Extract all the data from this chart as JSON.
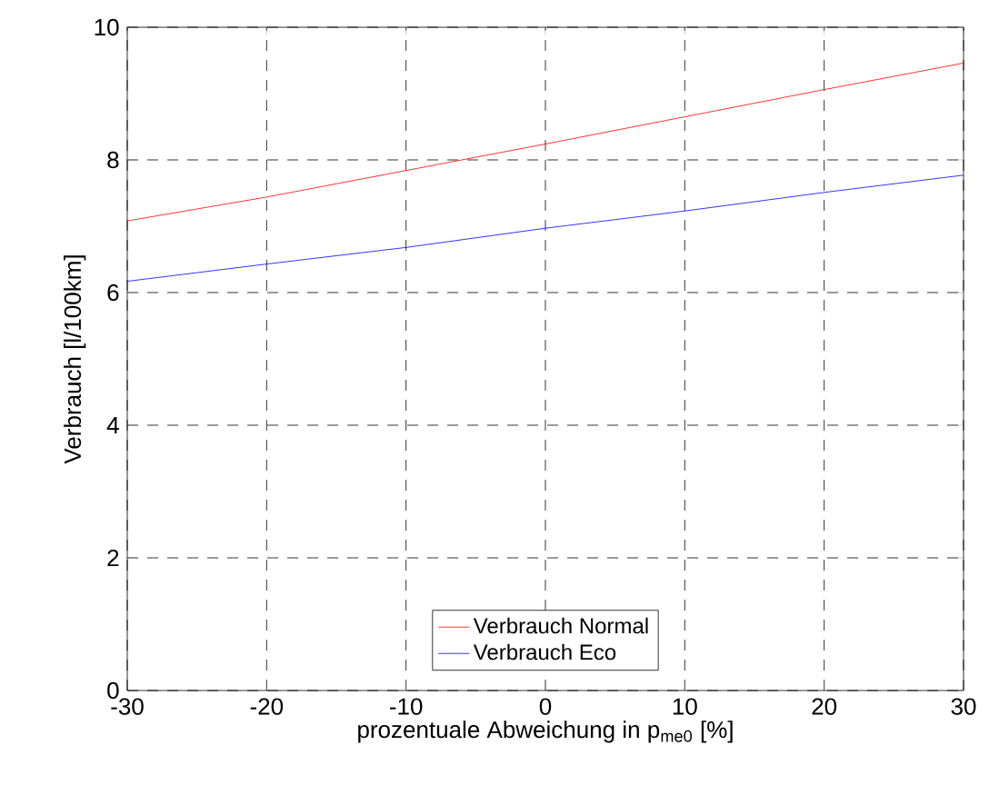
{
  "chart_data": {
    "type": "line",
    "xlabel": "prozentuale Abweichung in p$_{me0}$ [%]",
    "ylabel": "Verbrauch [l/100km]",
    "x": [
      -30,
      -20,
      -10,
      0,
      10,
      20,
      30
    ],
    "series": [
      {
        "name": "Verbrauch Normal",
        "color": "#ff0000",
        "values": [
          7.08,
          7.44,
          7.84,
          8.24,
          8.65,
          9.06,
          9.46
        ]
      },
      {
        "name": "Verbrauch Eco",
        "color": "#0000ff",
        "values": [
          6.17,
          6.43,
          6.68,
          6.97,
          7.23,
          7.51,
          7.77
        ]
      }
    ],
    "xlim": [
      -30,
      30
    ],
    "ylim": [
      0,
      10
    ],
    "xticks": [
      -30,
      -20,
      -10,
      0,
      10,
      20,
      30
    ],
    "yticks": [
      0,
      2,
      4,
      6,
      8,
      10
    ],
    "grid": true,
    "legend": "bottom",
    "line_style": "solid",
    "marker": "none"
  }
}
